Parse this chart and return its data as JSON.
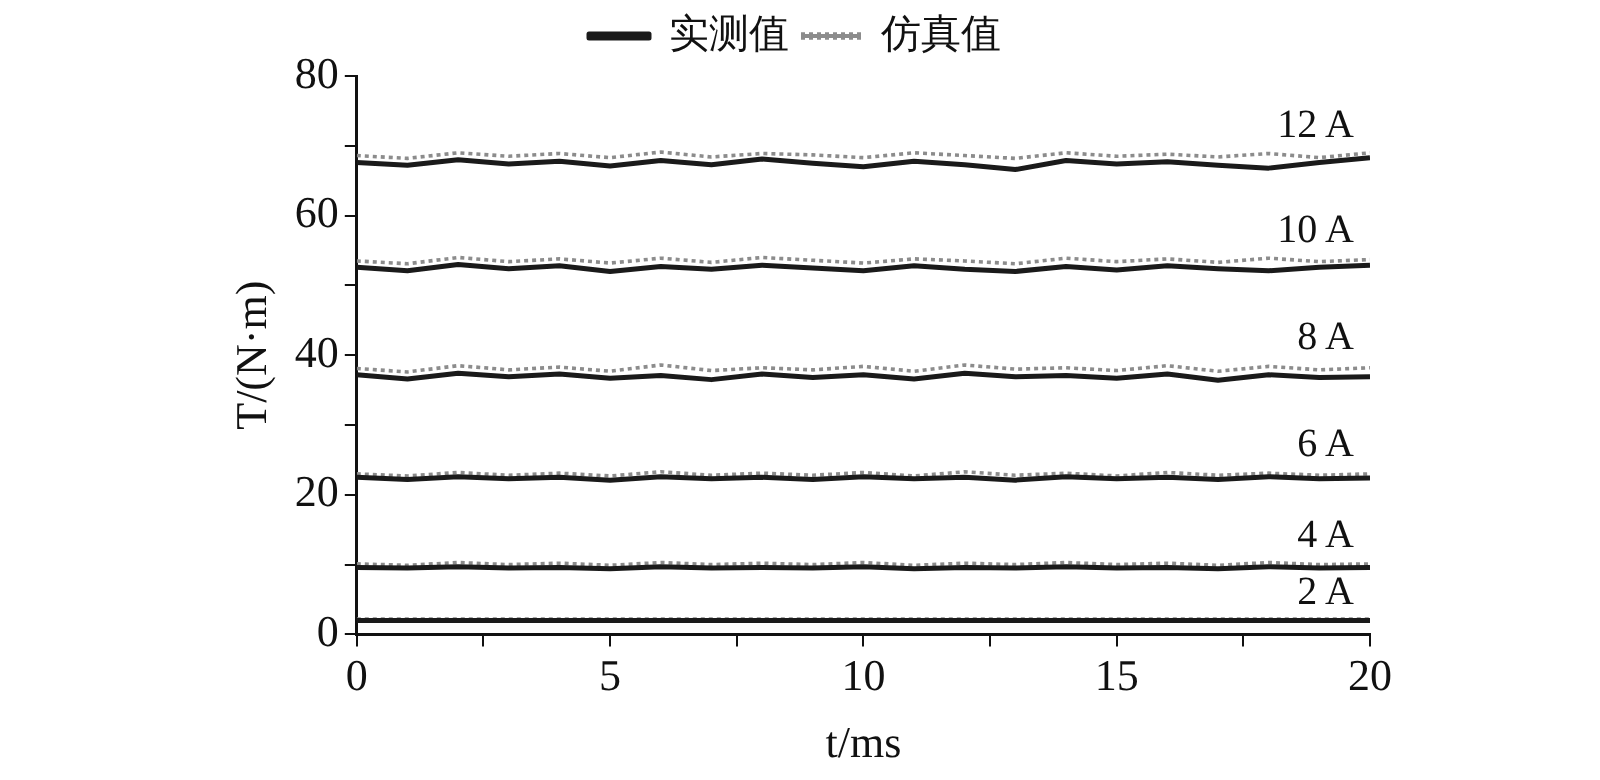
{
  "chart_data": {
    "type": "line",
    "xlabel": "t/ms",
    "ylabel": "T/(N·m)",
    "x": [
      0,
      1,
      2,
      3,
      4,
      5,
      6,
      7,
      8,
      9,
      10,
      11,
      12,
      13,
      14,
      15,
      16,
      17,
      18,
      19,
      20
    ],
    "xlim": [
      0,
      20
    ],
    "xticks": [
      0,
      {
        "value": 2.5,
        "label": null
      },
      5,
      {
        "value": 7.5,
        "label": null
      },
      10,
      {
        "value": 12.5,
        "label": null
      },
      15,
      {
        "value": 17.5,
        "label": null
      },
      20
    ],
    "ylim": [
      0,
      80
    ],
    "yticks": [
      0,
      {
        "value": 10,
        "label": null
      },
      20,
      {
        "value": 30,
        "label": null
      },
      40,
      {
        "value": 50,
        "label": null
      },
      60,
      {
        "value": 70,
        "label": null
      },
      80
    ],
    "grid": false,
    "legend": "top",
    "series": [
      {
        "name": "实测值",
        "color": "#1a1a1a",
        "line_style": "solid",
        "values": [
          67.6,
          67.2,
          68.0,
          67.4,
          67.8,
          67.1,
          67.9,
          67.3,
          68.1,
          67.5,
          67.0,
          67.8,
          67.3,
          66.6,
          67.9,
          67.4,
          67.7,
          67.2,
          66.8,
          67.6,
          68.3
        ]
      },
      {
        "name": "仿真值",
        "color": "#8c8c8c",
        "line_style": "dotted",
        "values": [
          68.6,
          68.2,
          69.0,
          68.5,
          68.9,
          68.3,
          69.1,
          68.4,
          68.9,
          68.7,
          68.3,
          69.0,
          68.6,
          68.2,
          69.0,
          68.5,
          68.8,
          68.4,
          68.9,
          68.3,
          69.0
        ]
      },
      {
        "color": "#1a1a1a",
        "line_style": "solid",
        "values": [
          52.6,
          52.1,
          53.0,
          52.4,
          52.8,
          52.0,
          52.7,
          52.3,
          52.9,
          52.5,
          52.1,
          52.8,
          52.3,
          52.0,
          52.7,
          52.2,
          52.8,
          52.4,
          52.1,
          52.6,
          52.9
        ]
      },
      {
        "color": "#8c8c8c",
        "line_style": "dotted",
        "values": [
          53.5,
          53.1,
          54.0,
          53.4,
          53.8,
          53.2,
          53.9,
          53.3,
          54.0,
          53.6,
          53.2,
          53.8,
          53.5,
          53.1,
          53.9,
          53.4,
          53.8,
          53.3,
          53.9,
          53.4,
          53.7
        ]
      },
      {
        "color": "#1a1a1a",
        "line_style": "solid",
        "values": [
          37.2,
          36.6,
          37.4,
          36.9,
          37.3,
          36.7,
          37.1,
          36.5,
          37.3,
          36.8,
          37.2,
          36.6,
          37.4,
          36.9,
          37.1,
          36.7,
          37.3,
          36.4,
          37.2,
          36.8,
          36.9
        ]
      },
      {
        "color": "#8c8c8c",
        "line_style": "dotted",
        "values": [
          38.1,
          37.6,
          38.5,
          37.9,
          38.3,
          37.7,
          38.6,
          37.8,
          38.2,
          37.9,
          38.4,
          37.7,
          38.6,
          38.0,
          38.2,
          37.8,
          38.5,
          37.7,
          38.4,
          37.9,
          38.2
        ]
      },
      {
        "color": "#1a1a1a",
        "line_style": "solid",
        "values": [
          22.5,
          22.2,
          22.6,
          22.3,
          22.5,
          22.1,
          22.6,
          22.3,
          22.5,
          22.2,
          22.6,
          22.3,
          22.5,
          22.1,
          22.6,
          22.3,
          22.5,
          22.2,
          22.6,
          22.3,
          22.4
        ]
      },
      {
        "color": "#8c8c8c",
        "line_style": "dotted",
        "values": [
          23.0,
          22.7,
          23.2,
          22.8,
          23.1,
          22.7,
          23.3,
          22.8,
          23.1,
          22.8,
          23.2,
          22.7,
          23.3,
          22.8,
          23.1,
          22.7,
          23.2,
          22.8,
          23.1,
          22.8,
          23.0
        ]
      },
      {
        "color": "#1a1a1a",
        "line_style": "solid",
        "values": [
          9.6,
          9.5,
          9.7,
          9.5,
          9.6,
          9.4,
          9.7,
          9.5,
          9.6,
          9.5,
          9.7,
          9.4,
          9.6,
          9.5,
          9.7,
          9.5,
          9.6,
          9.4,
          9.7,
          9.5,
          9.6
        ]
      },
      {
        "color": "#8c8c8c",
        "line_style": "dotted",
        "values": [
          10.1,
          9.9,
          10.3,
          10.0,
          10.2,
          9.9,
          10.3,
          10.0,
          10.2,
          10.0,
          10.3,
          9.9,
          10.2,
          10.0,
          10.3,
          10.0,
          10.2,
          9.9,
          10.3,
          10.0,
          10.1
        ]
      },
      {
        "color": "#1a1a1a",
        "line_style": "solid",
        "values": [
          2.0,
          2.0,
          2.0,
          2.0,
          2.0,
          2.0,
          2.0,
          2.0,
          2.0,
          2.0,
          2.0,
          2.0,
          2.0,
          2.0,
          2.0,
          2.0,
          2.0,
          2.0,
          2.0,
          2.0,
          2.0
        ]
      },
      {
        "color": "#8c8c8c",
        "line_style": "dotted",
        "values": [
          2.2,
          2.2,
          2.2,
          2.2,
          2.2,
          2.2,
          2.2,
          2.2,
          2.2,
          2.2,
          2.2,
          2.2,
          2.2,
          2.2,
          2.2,
          2.2,
          2.2,
          2.2,
          2.2,
          2.2,
          2.2
        ]
      }
    ],
    "annotations": [
      "12 A",
      "10 A",
      "8 A",
      "6 A",
      "4 A",
      "2 A"
    ]
  }
}
